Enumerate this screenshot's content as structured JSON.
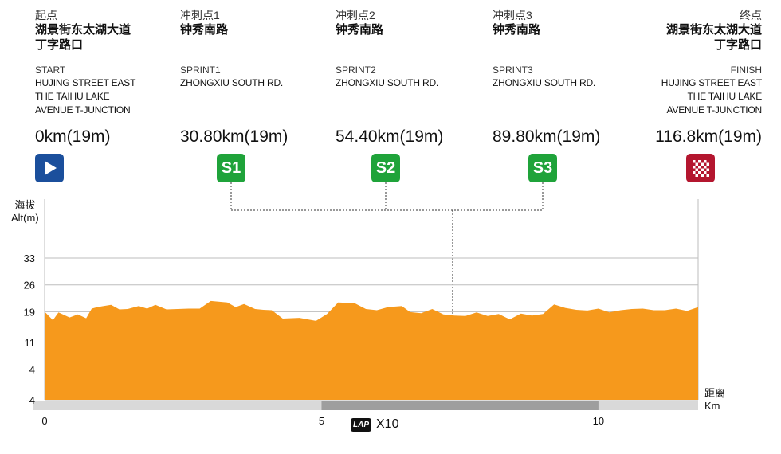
{
  "points": [
    {
      "id": "start",
      "cn_label": "起点",
      "cn_place": "湖景街东太湖大道\n丁字路口",
      "en_label": "START",
      "en_place": "HUJING STREET EAST\nTHE TAIHU LAKE\nAVENUE T-JUNCTION",
      "distance": "0km(19m)",
      "marker": "play-icon"
    },
    {
      "id": "s1",
      "cn_label": "冲刺点1",
      "cn_place": "钟秀南路",
      "en_label": "SPRINT1",
      "en_place": "ZHONGXIU SOUTH RD.",
      "distance": "30.80km(19m)",
      "marker": "S1"
    },
    {
      "id": "s2",
      "cn_label": "冲刺点2",
      "cn_place": "钟秀南路",
      "en_label": "SPRINT2",
      "en_place": "ZHONGXIU SOUTH RD.",
      "distance": "54.40km(19m)",
      "marker": "S2"
    },
    {
      "id": "s3",
      "cn_label": "冲刺点3",
      "cn_place": "钟秀南路",
      "en_label": "SPRINT3",
      "en_place": "ZHONGXIU SOUTH RD.",
      "distance": "89.80km(19m)",
      "marker": "S3"
    },
    {
      "id": "finish",
      "cn_label": "终点",
      "cn_place": "湖景街东太湖大道\n丁字路口",
      "en_label": "FINISH",
      "en_place": "HUJING STREET EAST\nTHE TAIHU LAKE\nAVENUE T-JUNCTION",
      "distance": "116.8km(19m)",
      "marker": "checkered-flag-icon"
    }
  ],
  "lap": {
    "icon": "LAP",
    "text": "X10"
  },
  "colors": {
    "area": "#f6991c",
    "sprint": "#1fa33a",
    "start": "#1b4f9c",
    "finish": "#b4162f",
    "grid": "#bdbdbd",
    "band_light": "#d9d9d9",
    "band_dark": "#9e9e9e"
  },
  "chart_data": {
    "type": "area",
    "ylabel": "海拔\nAlt(m)",
    "xlabel": "距离\nKm",
    "y_ticks": [
      "33",
      "26",
      "19",
      "11",
      "4",
      "-4"
    ],
    "y_tick_values": [
      33,
      26,
      19,
      11,
      4,
      -4
    ],
    "x_ticks": [
      "0",
      "5",
      "10"
    ],
    "x_tick_values": [
      0,
      5,
      10
    ],
    "xlim": [
      0,
      11.8
    ],
    "ylim": [
      -4,
      38
    ],
    "grid": true,
    "series": [
      {
        "x": [
          0,
          0.15,
          0.25,
          0.45,
          0.6,
          0.75,
          0.85,
          0.95,
          1.2,
          1.35,
          1.5,
          1.7,
          1.85,
          2.0,
          2.2,
          2.4,
          2.6,
          2.8,
          3.0,
          3.3,
          3.45,
          3.6,
          3.8,
          3.95,
          4.1,
          4.3,
          4.6,
          4.9,
          5.1,
          5.3,
          5.6,
          5.8,
          6.0,
          6.2,
          6.45,
          6.6,
          6.8,
          7.0,
          7.2,
          7.4,
          7.6,
          7.8,
          8.0,
          8.2,
          8.4,
          8.6,
          8.8,
          9.0,
          9.2,
          9.4,
          9.6,
          9.8,
          10.0,
          10.2,
          10.4,
          10.6,
          10.8,
          11.0,
          11.2,
          11.4,
          11.6,
          11.8
        ],
        "values": [
          19,
          16.8,
          18.8,
          17.5,
          18.3,
          17.3,
          19.8,
          20.2,
          20.8,
          19.6,
          19.7,
          20.5,
          19.8,
          20.8,
          19.6,
          19.7,
          19.8,
          19.8,
          21.8,
          21.4,
          20.2,
          21,
          19.7,
          19.5,
          19.4,
          17.2,
          17.4,
          16.6,
          18.4,
          21.4,
          21.2,
          19.7,
          19.4,
          20.2,
          20.5,
          18.9,
          18.6,
          19.7,
          18.3,
          18.0,
          17.9,
          18.8,
          17.9,
          18.4,
          17.0,
          18.5,
          18.0,
          18.4,
          20.9,
          20.0,
          19.5,
          19.3,
          19.8,
          18.8,
          19.4,
          19.7,
          19.8,
          19.4,
          19.4,
          19.8,
          19.2,
          20.2
        ]
      }
    ]
  }
}
